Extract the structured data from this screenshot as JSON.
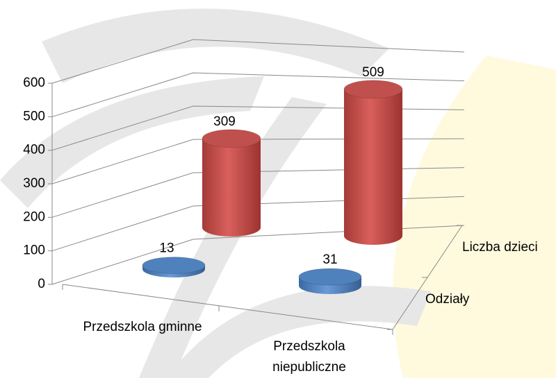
{
  "chart_data": {
    "type": "cylinder3d",
    "categories": [
      "Przedszkola gminne",
      "Przedszkola niepubliczne"
    ],
    "series": [
      {
        "name": "Odziały",
        "color": "#4f81bd",
        "values": [
          13,
          31
        ]
      },
      {
        "name": "Liczba dzieci",
        "color": "#c0504d",
        "values": [
          309,
          509
        ]
      }
    ],
    "ylim": [
      0,
      600
    ],
    "yticks": [
      0,
      100,
      200,
      300,
      400,
      500,
      600
    ],
    "grid": true
  }
}
